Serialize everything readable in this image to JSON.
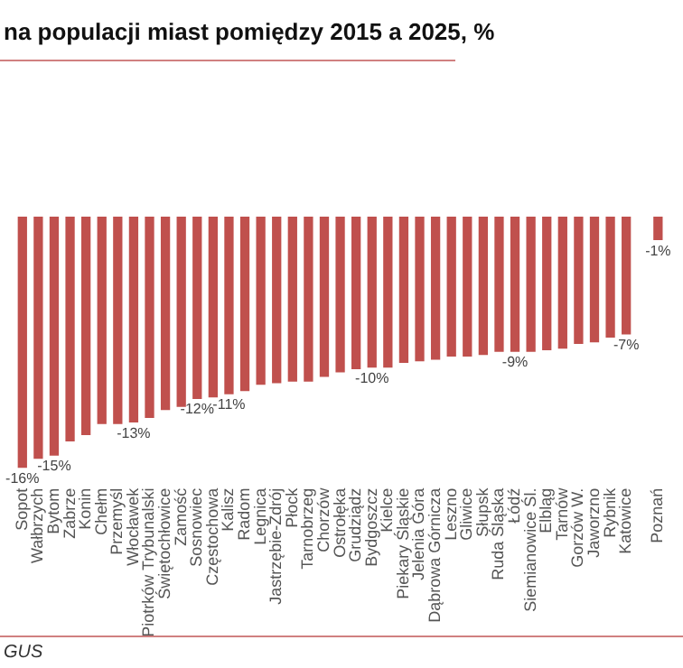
{
  "chart_data": {
    "type": "bar",
    "title": "na populacji miast pomiędzy 2015 a 2025, %",
    "categories": [
      "Sopot",
      "Wałbrzych",
      "Bytom",
      "Zabrze",
      "Konin",
      "Chełm",
      "Przemyśl",
      "Włocławek",
      "Piotrków Trybunalski",
      "Świętochłowice",
      "Zamość",
      "Sosnowiec",
      "Częstochowa",
      "Kalisz",
      "Radom",
      "Legnica",
      "Jastrzębie-Zdrój",
      "Płock",
      "Tarnobrzeg",
      "Chorzów",
      "Ostrołęka",
      "Grudziądz",
      "Bydgoszcz",
      "Kielce",
      "Piekary Śląskie",
      "Jelenia Góra",
      "Dąbrowa Górnicza",
      "Leszno",
      "Gliwice",
      "Słupsk",
      "Ruda Śląska",
      "Łódź",
      "Siemianowice Śl.",
      "Elbląg",
      "Tarnów",
      "Gorzów W.",
      "Jaworzno",
      "Rybnik",
      "Katowice",
      null,
      "Poznań"
    ],
    "values": [
      -16,
      -15.4,
      -15.2,
      -14.3,
      -13.9,
      -13.2,
      -13.2,
      -13.1,
      -12.8,
      -12.3,
      -12.1,
      -11.6,
      -11.5,
      -11.3,
      -11.1,
      -10.7,
      -10.6,
      -10.5,
      -10.5,
      -10.2,
      -9.9,
      -9.7,
      -9.6,
      -9.6,
      -9.3,
      -9.2,
      -9.1,
      -8.9,
      -8.9,
      -8.8,
      -8.6,
      -8.6,
      -8.6,
      -8.5,
      -8.4,
      -8.1,
      -8,
      -7.7,
      -7.5,
      null,
      -1.5
    ],
    "value_labels": [
      "-16%",
      null,
      "-15%",
      null,
      null,
      null,
      null,
      "-13%",
      null,
      null,
      null,
      "-12%",
      null,
      "-11%",
      null,
      null,
      null,
      null,
      null,
      null,
      null,
      null,
      "-10%",
      null,
      null,
      null,
      null,
      null,
      null,
      null,
      null,
      "-9%",
      null,
      null,
      null,
      null,
      null,
      null,
      "-7%",
      null,
      "-1%"
    ],
    "color": "#c0504d",
    "annotations": [
      "GUS"
    ]
  }
}
